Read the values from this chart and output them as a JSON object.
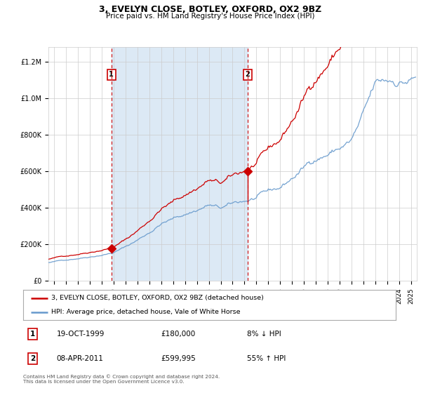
{
  "title": "3, EVELYN CLOSE, BOTLEY, OXFORD, OX2 9BZ",
  "subtitle": "Price paid vs. HM Land Registry's House Price Index (HPI)",
  "legend_line1": "3, EVELYN CLOSE, BOTLEY, OXFORD, OX2 9BZ (detached house)",
  "legend_line2": "HPI: Average price, detached house, Vale of White Horse",
  "transaction1_date": "19-OCT-1999",
  "transaction1_price": 180000,
  "transaction1_hpi": "8% ↓ HPI",
  "transaction1_year": 1999.8,
  "transaction2_date": "08-APR-2011",
  "transaction2_price": 599995,
  "transaction2_hpi": "55% ↑ HPI",
  "transaction2_year": 2011.27,
  "footnote": "Contains HM Land Registry data © Crown copyright and database right 2024.\nThis data is licensed under the Open Government Licence v3.0.",
  "background_color": "#ffffff",
  "shaded_region_color": "#dce9f5",
  "red_color": "#cc0000",
  "blue_color": "#6699cc",
  "grid_color": "#cccccc",
  "ylim": [
    0,
    1280000
  ],
  "xlim_start": 1994.5,
  "xlim_end": 2025.5
}
